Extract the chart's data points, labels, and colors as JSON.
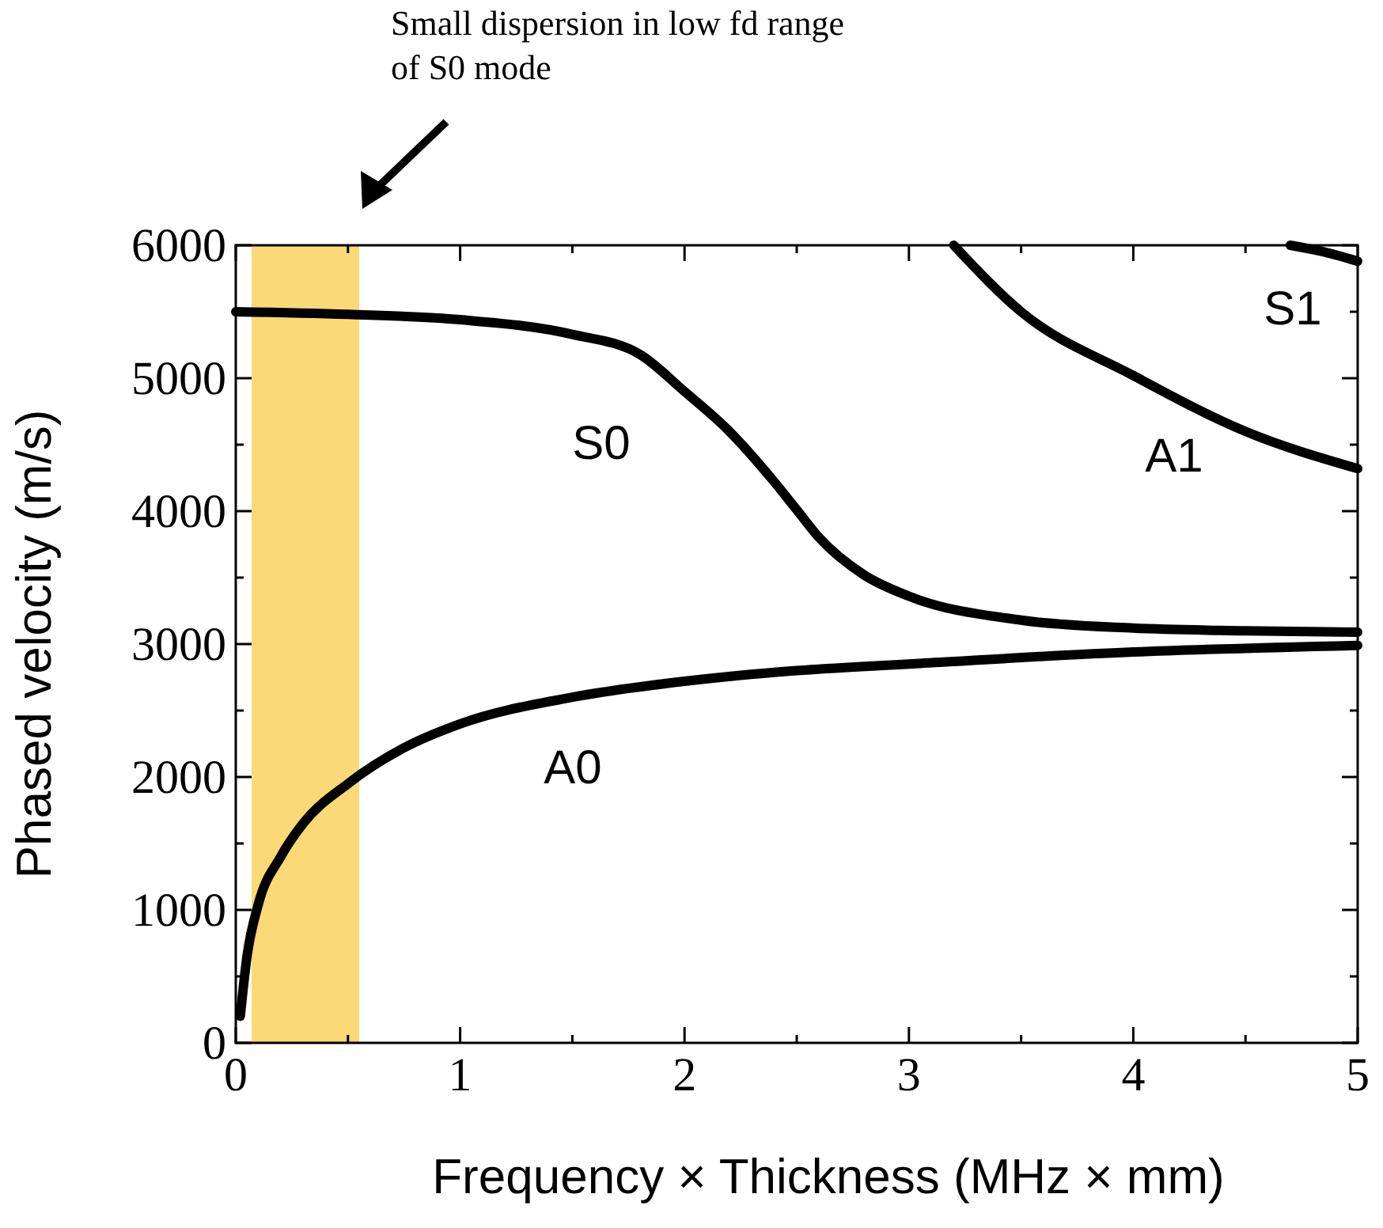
{
  "chart_data": {
    "type": "line",
    "xlabel": "Frequency × Thickness (MHz  × mm)",
    "ylabel": "Phased velocity (m/s)",
    "xlim": [
      0,
      5
    ],
    "ylim": [
      0,
      6000
    ],
    "xticks": [
      0,
      {
        "value": 0.5,
        "label": null
      },
      1,
      {
        "value": 1.5,
        "label": null
      },
      2,
      {
        "value": 2.5,
        "label": null
      },
      3,
      {
        "value": 3.5,
        "label": null
      },
      4,
      {
        "value": 4.5,
        "label": null
      },
      5
    ],
    "yticks": [
      0,
      {
        "value": 500,
        "label": null
      },
      1000,
      {
        "value": 1500,
        "label": null
      },
      2000,
      {
        "value": 2500,
        "label": null
      },
      3000,
      {
        "value": 3500,
        "label": null
      },
      4000,
      {
        "value": 4500,
        "label": null
      },
      5000,
      {
        "value": 5500,
        "label": null
      },
      6000
    ],
    "grid": false,
    "line_style": "solid",
    "marker": "none",
    "bands": [
      {
        "axis": "x",
        "from": 0.07,
        "to": 0.55,
        "color": "#fcd977"
      }
    ],
    "series": [
      {
        "color": "#000000",
        "x": [
          0,
          0.5,
          1,
          1.5,
          1.8,
          2,
          2.2,
          2.4,
          2.5,
          2.6,
          2.8,
          3,
          3.5,
          4,
          4.5,
          5
        ],
        "values": [
          5500,
          5480,
          5440,
          5330,
          5180,
          4900,
          4600,
          4220,
          4010,
          3800,
          3520,
          3360,
          3180,
          3120,
          3100,
          3090
        ]
      },
      {
        "color": "#000000",
        "x": [
          0.02,
          0.05,
          0.1,
          0.2,
          0.3,
          0.5,
          0.75,
          1,
          1.5,
          2,
          2.5,
          3,
          4,
          5
        ],
        "values": [
          200,
          650,
          1040,
          1400,
          1650,
          1950,
          2220,
          2400,
          2600,
          2720,
          2800,
          2850,
          2940,
          2990
        ]
      },
      {
        "color": "#000000",
        "x": [
          3.2,
          3.5,
          4,
          4.5,
          5
        ],
        "values": [
          6000,
          5500,
          5020,
          4600,
          4320
        ]
      },
      {
        "color": "#000000",
        "x": [
          4.7,
          4.85,
          5
        ],
        "values": [
          6000,
          5950,
          5880
        ]
      }
    ],
    "annotations": [
      "S0",
      "A0",
      "A1",
      "S1",
      "Small dispersion in low fd range of S0 mode"
    ]
  }
}
